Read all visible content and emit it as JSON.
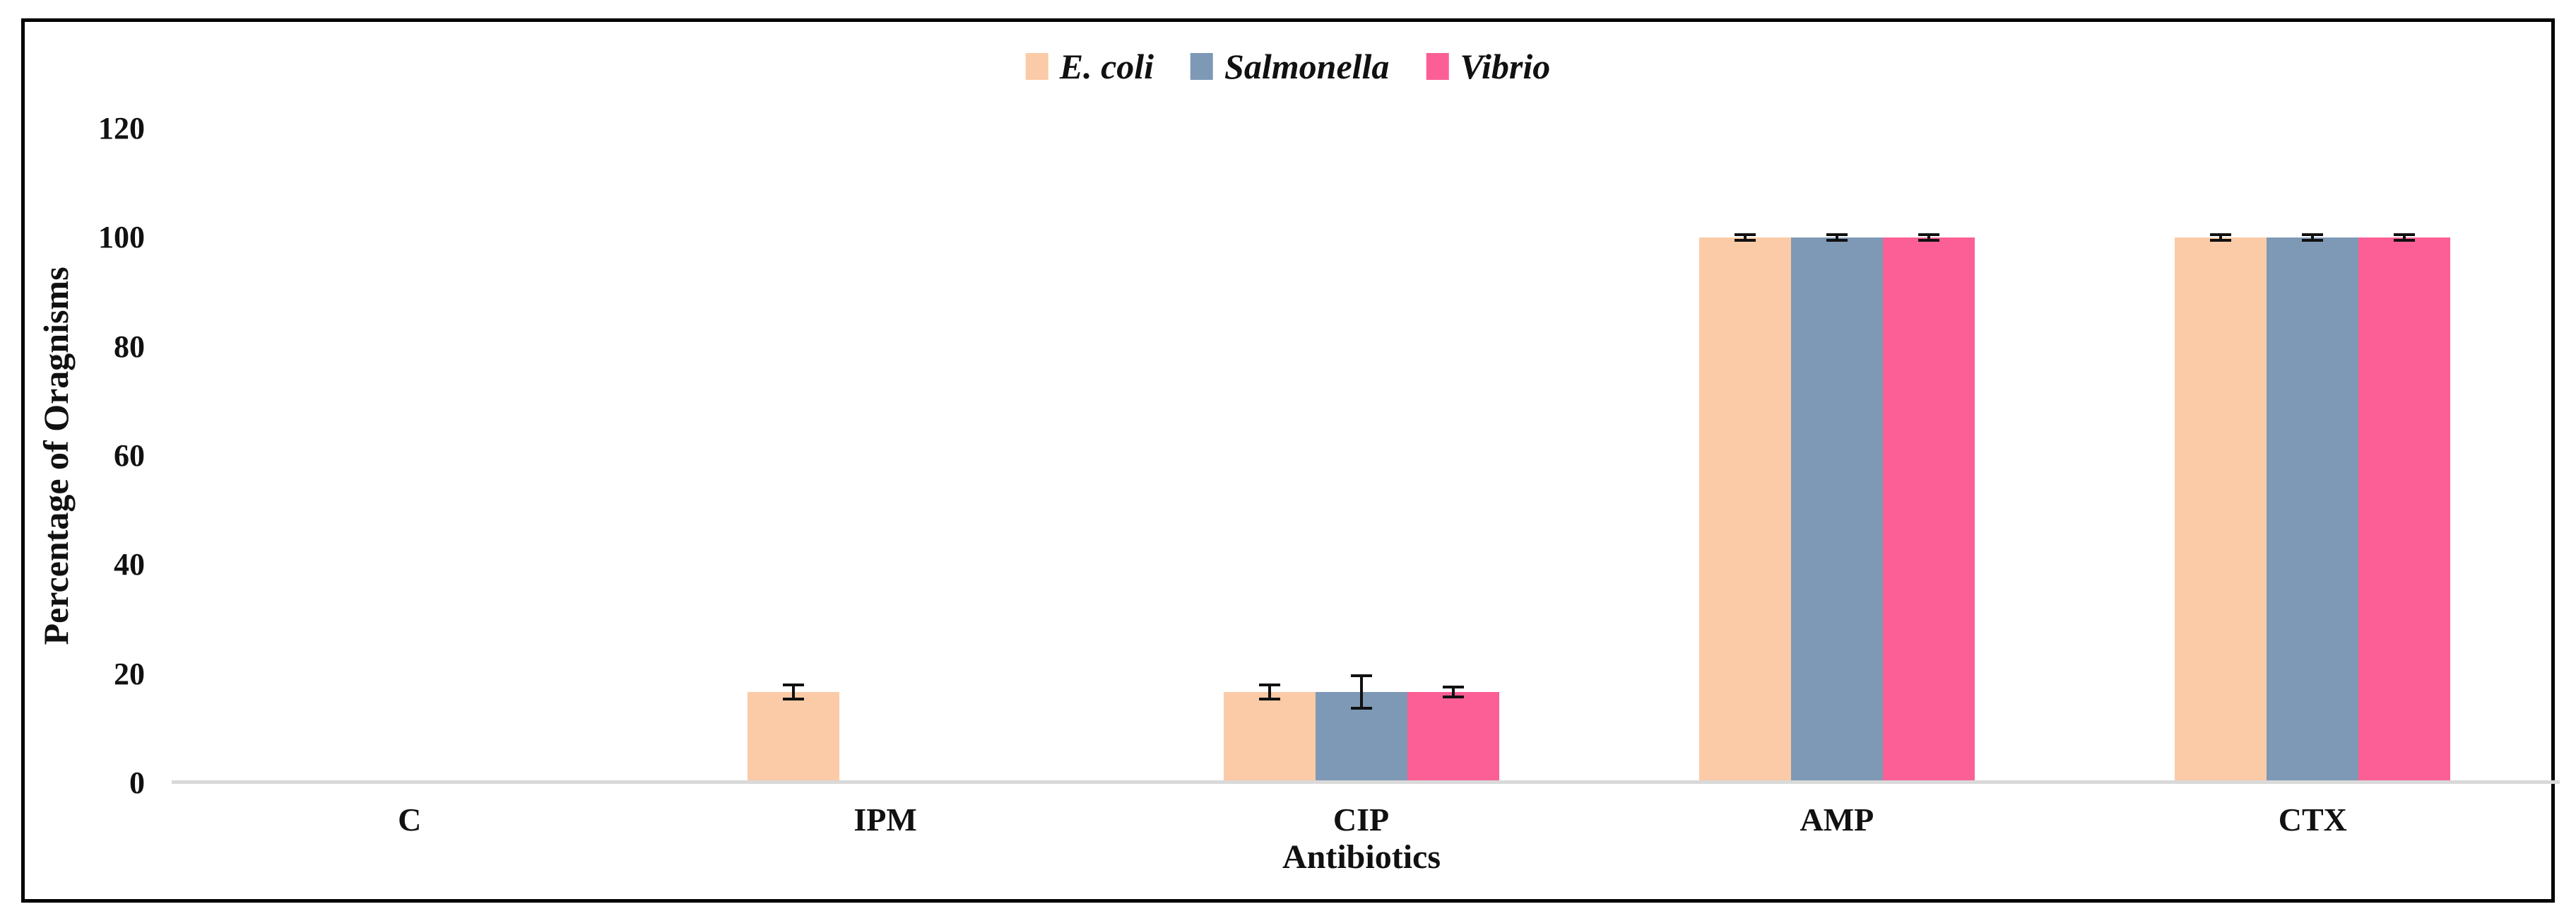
{
  "chart_data": {
    "type": "bar",
    "title": "",
    "xlabel": "Antibiotics",
    "ylabel": "Percentage of Oragnisms",
    "categories": [
      "C",
      "IPM",
      "CIP",
      "AMP",
      "CTX"
    ],
    "series": [
      {
        "name": "E. coli",
        "color": "#FBCBA7",
        "values": [
          0,
          16.7,
          16.7,
          100,
          100
        ],
        "errors": [
          0,
          1.3,
          1.3,
          0.5,
          0.5
        ]
      },
      {
        "name": "Salmonella",
        "color": "#7E99B6",
        "values": [
          0,
          0,
          16.7,
          100,
          100
        ],
        "errors": [
          0,
          0,
          3.0,
          0.5,
          0.5
        ]
      },
      {
        "name": "Vibrio",
        "color": "#FB5F96",
        "values": [
          0,
          0,
          16.7,
          100,
          100
        ],
        "errors": [
          0,
          0,
          0.9,
          0.5,
          0.5
        ]
      }
    ],
    "ylim": [
      0,
      120
    ],
    "yticks": [
      0,
      20,
      40,
      60,
      80,
      100,
      120
    ],
    "grid": false,
    "legend_position": "top",
    "error_bar_color": "#111111",
    "axis_line_color": "#D9D9D9",
    "frame_border_color": "#000000",
    "background_color": "#FFFFFF"
  }
}
